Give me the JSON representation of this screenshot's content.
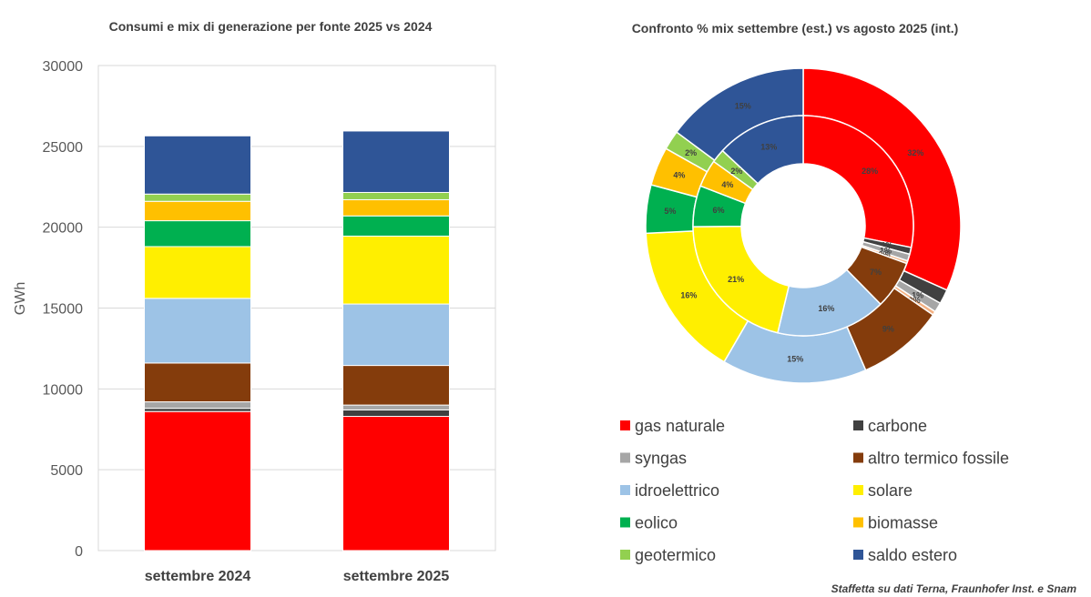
{
  "chart_data": [
    {
      "type": "bar",
      "stacked": true,
      "title": "Consumi e mix di generazione per fonte 2025 vs 2024",
      "ylabel": "GWh",
      "ylim": [
        0,
        30000
      ],
      "yticks": [
        "0",
        "5000",
        "10000",
        "15000",
        "20000",
        "25000",
        "30000"
      ],
      "grid": true,
      "categories": [
        "settembre 2024",
        "settembre 2025"
      ],
      "series": [
        {
          "name": "gas naturale",
          "color": "#ff0000",
          "values": [
            8600,
            8300
          ]
        },
        {
          "name": "carbone",
          "color": "#404040",
          "values": [
            200,
            400
          ]
        },
        {
          "name": "syngas",
          "color": "#a6a6a6",
          "values": [
            400,
            300
          ]
        },
        {
          "name": "altro termico fossile",
          "color": "#843c0c",
          "values": [
            2400,
            2450
          ]
        },
        {
          "name": "idroelettrico",
          "color": "#9dc3e6",
          "values": [
            4000,
            3800
          ]
        },
        {
          "name": "solare",
          "color": "#ffef00",
          "values": [
            3200,
            4200
          ]
        },
        {
          "name": "eolico",
          "color": "#00b050",
          "values": [
            1600,
            1250
          ]
        },
        {
          "name": "biomasse",
          "color": "#ffc000",
          "values": [
            1200,
            1000
          ]
        },
        {
          "name": "geotermico",
          "color": "#92d050",
          "values": [
            450,
            450
          ]
        },
        {
          "name": "saldo estero",
          "color": "#2f5597",
          "values": [
            3600,
            3800
          ]
        }
      ]
    },
    {
      "type": "pie",
      "donut": true,
      "title": "Confronto % mix settembre (est.) vs agosto 2025 (int.)",
      "rings": [
        {
          "ring": "outer",
          "values": [
            32,
            1.5,
            1,
            0.4,
            9,
            15,
            16,
            5,
            4,
            2,
            15
          ],
          "labels": [
            "32%",
            "",
            "1%",
            "0%",
            "9%",
            "15%",
            "16%",
            "5%",
            "4%",
            "2%",
            "15%"
          ]
        },
        {
          "ring": "inner",
          "values": [
            28,
            1,
            1,
            0.4,
            7,
            16,
            21,
            6,
            4,
            2,
            13
          ],
          "labels": [
            "28%",
            "1%",
            "1%",
            "0%",
            "7%",
            "16%",
            "21%",
            "6%",
            "4%",
            "2%",
            "13%"
          ]
        }
      ],
      "slice_names": [
        "gas naturale",
        "carbone",
        "syngas",
        "altro",
        "altro termico fossile",
        "idroelettrico",
        "solare",
        "eolico",
        "biomasse",
        "geotermico",
        "saldo estero"
      ],
      "slice_colors": [
        "#ff0000",
        "#404040",
        "#a6a6a6",
        "#f4b183",
        "#843c0c",
        "#9dc3e6",
        "#ffef00",
        "#00b050",
        "#ffc000",
        "#92d050",
        "#2f5597"
      ]
    }
  ],
  "legend": {
    "placement": "bottom-right",
    "items": [
      {
        "label": "gas naturale",
        "color": "#ff0000"
      },
      {
        "label": "carbone",
        "color": "#404040"
      },
      {
        "label": "syngas",
        "color": "#a6a6a6"
      },
      {
        "label": "altro termico fossile",
        "color": "#843c0c"
      },
      {
        "label": "idroelettrico",
        "color": "#9dc3e6"
      },
      {
        "label": "solare",
        "color": "#ffef00"
      },
      {
        "label": "eolico",
        "color": "#00b050"
      },
      {
        "label": "biomasse",
        "color": "#ffc000"
      },
      {
        "label": "geotermico",
        "color": "#92d050"
      },
      {
        "label": "saldo estero",
        "color": "#2f5597"
      }
    ]
  },
  "source": "Staffetta su dati Terna, Fraunhofer Inst. e Snam"
}
